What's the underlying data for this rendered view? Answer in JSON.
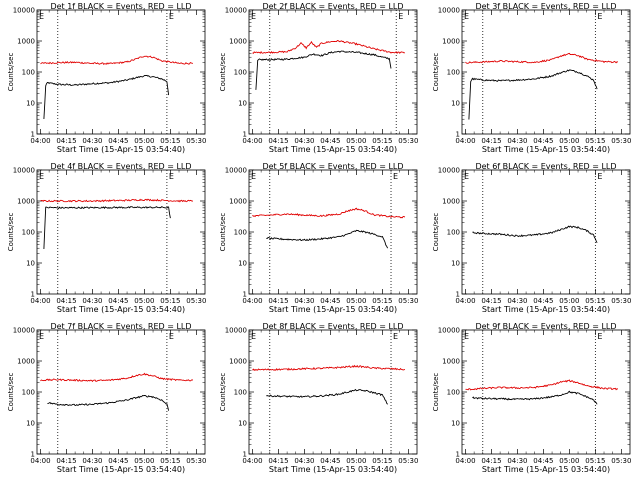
{
  "page": {
    "title": "Det 1f BLACK = Events, RED = LLD"
  },
  "common": {
    "ylabel": "Counts/sec",
    "xlabel": "Start Time (15-Apr-15 03:54:40)",
    "x_ticks": [
      "04:00",
      "04:15",
      "04:30",
      "04:45",
      "05:00",
      "05:15",
      "05:30"
    ],
    "y_ticks": [
      "1",
      "10",
      "100",
      "1000",
      "10000"
    ],
    "corner_marker": "E",
    "colors": {
      "events": "#000000",
      "lld": "#e00000",
      "axes": "#000000",
      "background": "#ffffff"
    }
  },
  "chart_data": [
    {
      "type": "line",
      "title": "Det 1f BLACK = Events, RED = LLD",
      "xlabel": "Start Time (15-Apr-15 03:54:40)",
      "ylabel": "Counts/sec",
      "y_scale": "log",
      "ylim": [
        1,
        10000
      ],
      "x_range": [
        "04:00",
        "05:35"
      ],
      "markers": [
        "04:10",
        "05:13"
      ],
      "series": [
        {
          "name": "Events",
          "x": [
            "04:02",
            "04:03",
            "04:04",
            "04:10",
            "04:20",
            "04:30",
            "04:40",
            "04:50",
            "04:55",
            "05:00",
            "05:05",
            "05:10",
            "05:13",
            "05:14"
          ],
          "y": [
            3,
            35,
            45,
            40,
            38,
            42,
            45,
            55,
            65,
            75,
            70,
            60,
            50,
            18
          ]
        },
        {
          "name": "LLD",
          "x": [
            "04:00",
            "04:10",
            "04:20",
            "04:30",
            "04:40",
            "04:50",
            "04:55",
            "05:00",
            "05:05",
            "05:10",
            "05:20",
            "05:28"
          ],
          "y": [
            190,
            200,
            205,
            190,
            185,
            210,
            260,
            330,
            300,
            230,
            190,
            190
          ]
        }
      ]
    },
    {
      "type": "line",
      "title": "Det 2f BLACK = Events, RED = LLD",
      "xlabel": "Start Time (15-Apr-15 03:54:40)",
      "ylabel": "Counts/sec",
      "y_scale": "log",
      "ylim": [
        1,
        10000
      ],
      "x_range": [
        "04:00",
        "05:35"
      ],
      "markers": [
        "04:10",
        "05:23"
      ],
      "series": [
        {
          "name": "Events",
          "x": [
            "04:02",
            "04:03",
            "04:04",
            "04:10",
            "04:20",
            "04:30",
            "04:35",
            "04:40",
            "04:45",
            "04:50",
            "05:00",
            "05:10",
            "05:15",
            "05:19",
            "05:20"
          ],
          "y": [
            25,
            230,
            250,
            250,
            260,
            300,
            380,
            340,
            420,
            460,
            430,
            360,
            300,
            270,
            130
          ]
        },
        {
          "name": "LLD",
          "x": [
            "04:00",
            "04:10",
            "04:20",
            "04:25",
            "04:28",
            "04:31",
            "04:34",
            "04:37",
            "04:40",
            "04:45",
            "04:50",
            "05:00",
            "05:10",
            "05:20",
            "05:28"
          ],
          "y": [
            420,
            430,
            450,
            600,
            850,
            600,
            900,
            620,
            850,
            950,
            1000,
            800,
            560,
            430,
            420
          ]
        }
      ]
    },
    {
      "type": "line",
      "title": "Det 3f BLACK = Events, RED = LLD",
      "xlabel": "Start Time (15-Apr-15 03:54:40)",
      "ylabel": "Counts/sec",
      "y_scale": "log",
      "ylim": [
        1,
        10000
      ],
      "x_range": [
        "04:00",
        "05:35"
      ],
      "markers": [
        "04:10",
        "05:15"
      ],
      "series": [
        {
          "name": "Events",
          "x": [
            "04:02",
            "04:03",
            "04:04",
            "04:10",
            "04:20",
            "04:30",
            "04:40",
            "04:50",
            "04:55",
            "05:00",
            "05:05",
            "05:10",
            "05:14",
            "05:16"
          ],
          "y": [
            3,
            50,
            60,
            55,
            52,
            55,
            60,
            75,
            95,
            115,
            100,
            75,
            55,
            28
          ]
        },
        {
          "name": "LLD",
          "x": [
            "04:00",
            "04:10",
            "04:20",
            "04:30",
            "04:40",
            "04:50",
            "04:55",
            "05:00",
            "05:05",
            "05:10",
            "05:20",
            "05:28"
          ],
          "y": [
            200,
            210,
            225,
            215,
            205,
            250,
            330,
            380,
            340,
            260,
            215,
            210
          ]
        }
      ]
    },
    {
      "type": "line",
      "title": "Det 4f BLACK = Events, RED = LLD",
      "xlabel": "Start Time (15-Apr-15 03:54:40)",
      "ylabel": "Counts/sec",
      "y_scale": "log",
      "ylim": [
        1,
        10000
      ],
      "x_range": [
        "04:00",
        "05:35"
      ],
      "markers": [
        "04:10",
        "05:13"
      ],
      "series": [
        {
          "name": "Events",
          "x": [
            "04:02",
            "04:03",
            "04:04",
            "04:10",
            "04:30",
            "04:50",
            "05:00",
            "05:10",
            "05:14",
            "05:15"
          ],
          "y": [
            30,
            600,
            620,
            600,
            610,
            620,
            620,
            620,
            610,
            280
          ]
        },
        {
          "name": "LLD",
          "x": [
            "04:00",
            "04:10",
            "04:30",
            "04:50",
            "05:00",
            "05:10",
            "05:20",
            "05:28"
          ],
          "y": [
            1000,
            1000,
            1000,
            1050,
            1100,
            1050,
            1000,
            1000
          ]
        }
      ]
    },
    {
      "type": "line",
      "title": "Det 5f BLACK = Events, RED = LLD",
      "xlabel": "Start Time (15-Apr-15 03:54:40)",
      "ylabel": "Counts/sec",
      "y_scale": "log",
      "ylim": [
        1,
        10000
      ],
      "x_range": [
        "04:00",
        "05:35"
      ],
      "markers": [
        "04:10",
        "05:20"
      ],
      "series": [
        {
          "name": "Events",
          "x": [
            "04:08",
            "04:10",
            "04:20",
            "04:30",
            "04:40",
            "04:50",
            "04:55",
            "05:00",
            "05:05",
            "05:10",
            "05:15",
            "05:18"
          ],
          "y": [
            65,
            62,
            58,
            55,
            60,
            70,
            85,
            110,
            100,
            85,
            70,
            30
          ]
        },
        {
          "name": "LLD",
          "x": [
            "04:00",
            "04:10",
            "04:20",
            "04:30",
            "04:40",
            "04:50",
            "04:55",
            "05:00",
            "05:05",
            "05:10",
            "05:20",
            "05:28"
          ],
          "y": [
            330,
            350,
            380,
            350,
            330,
            380,
            480,
            560,
            480,
            360,
            310,
            300
          ]
        }
      ]
    },
    {
      "type": "line",
      "title": "Det 6f BLACK = Events, RED = LLD",
      "xlabel": "Start Time (15-Apr-15 03:54:40)",
      "ylabel": "Counts/sec",
      "y_scale": "log",
      "ylim": [
        1,
        10000
      ],
      "x_range": [
        "04:00",
        "05:35"
      ],
      "markers": [
        "04:10",
        "05:15"
      ],
      "series": [
        {
          "name": "Events",
          "x": [
            "04:04",
            "04:10",
            "04:20",
            "04:30",
            "04:40",
            "04:50",
            "04:55",
            "05:00",
            "05:05",
            "05:10",
            "05:14",
            "05:16"
          ],
          "y": [
            95,
            90,
            85,
            75,
            80,
            95,
            120,
            150,
            140,
            110,
            80,
            45
          ]
        }
      ]
    },
    {
      "type": "line",
      "title": "Det 7f BLACK = Events, RED = LLD",
      "xlabel": "Start Time (15-Apr-15 03:54:40)",
      "ylabel": "Counts/sec",
      "y_scale": "log",
      "ylim": [
        1,
        10000
      ],
      "x_range": [
        "04:00",
        "05:35"
      ],
      "markers": [
        "04:10",
        "05:13"
      ],
      "series": [
        {
          "name": "Events",
          "x": [
            "04:04",
            "04:10",
            "04:20",
            "04:30",
            "04:40",
            "04:50",
            "04:55",
            "05:00",
            "05:05",
            "05:10",
            "05:13",
            "05:14"
          ],
          "y": [
            45,
            40,
            38,
            40,
            45,
            55,
            65,
            75,
            70,
            55,
            40,
            25
          ]
        },
        {
          "name": "LLD",
          "x": [
            "04:00",
            "04:10",
            "04:20",
            "04:30",
            "04:40",
            "04:50",
            "04:55",
            "05:00",
            "05:05",
            "05:10",
            "05:20",
            "05:28"
          ],
          "y": [
            240,
            250,
            240,
            230,
            240,
            280,
            340,
            380,
            330,
            270,
            240,
            240
          ]
        }
      ]
    },
    {
      "type": "line",
      "title": "Det 8f BLACK = Events, RED = LLD",
      "xlabel": "Start Time (15-Apr-15 03:54:40)",
      "ylabel": "Counts/sec",
      "y_scale": "log",
      "ylim": [
        1,
        10000
      ],
      "x_range": [
        "04:00",
        "05:35"
      ],
      "markers": [
        "04:10",
        "05:20"
      ],
      "series": [
        {
          "name": "Events",
          "x": [
            "04:08",
            "04:10",
            "04:20",
            "04:30",
            "04:40",
            "04:50",
            "04:55",
            "05:00",
            "05:05",
            "05:10",
            "05:15",
            "05:18"
          ],
          "y": [
            78,
            75,
            72,
            70,
            75,
            85,
            100,
            115,
            110,
            95,
            80,
            40
          ]
        },
        {
          "name": "LLD",
          "x": [
            "04:00",
            "04:10",
            "04:20",
            "04:30",
            "04:40",
            "04:50",
            "04:55",
            "05:00",
            "05:05",
            "05:10",
            "05:20",
            "05:28"
          ],
          "y": [
            520,
            530,
            540,
            560,
            580,
            620,
            650,
            680,
            640,
            590,
            560,
            530
          ]
        }
      ]
    },
    {
      "type": "line",
      "title": "Det 9f BLACK = Events, RED = LLD",
      "xlabel": "Start Time (15-Apr-15 03:54:40)",
      "ylabel": "Counts/sec",
      "y_scale": "log",
      "ylim": [
        1,
        10000
      ],
      "x_range": [
        "04:00",
        "05:35"
      ],
      "markers": [
        "04:10",
        "05:15"
      ],
      "series": [
        {
          "name": "Events",
          "x": [
            "04:04",
            "04:10",
            "04:20",
            "04:30",
            "04:40",
            "04:50",
            "04:55",
            "05:00",
            "05:05",
            "05:10",
            "05:14",
            "05:16"
          ],
          "y": [
            65,
            62,
            60,
            58,
            60,
            70,
            80,
            100,
            90,
            70,
            55,
            40
          ]
        },
        {
          "name": "LLD",
          "x": [
            "04:00",
            "04:10",
            "04:20",
            "04:30",
            "04:40",
            "04:50",
            "04:55",
            "05:00",
            "05:05",
            "05:10",
            "05:20",
            "05:28"
          ],
          "y": [
            120,
            130,
            140,
            135,
            140,
            170,
            210,
            230,
            200,
            160,
            130,
            125
          ]
        }
      ]
    }
  ]
}
